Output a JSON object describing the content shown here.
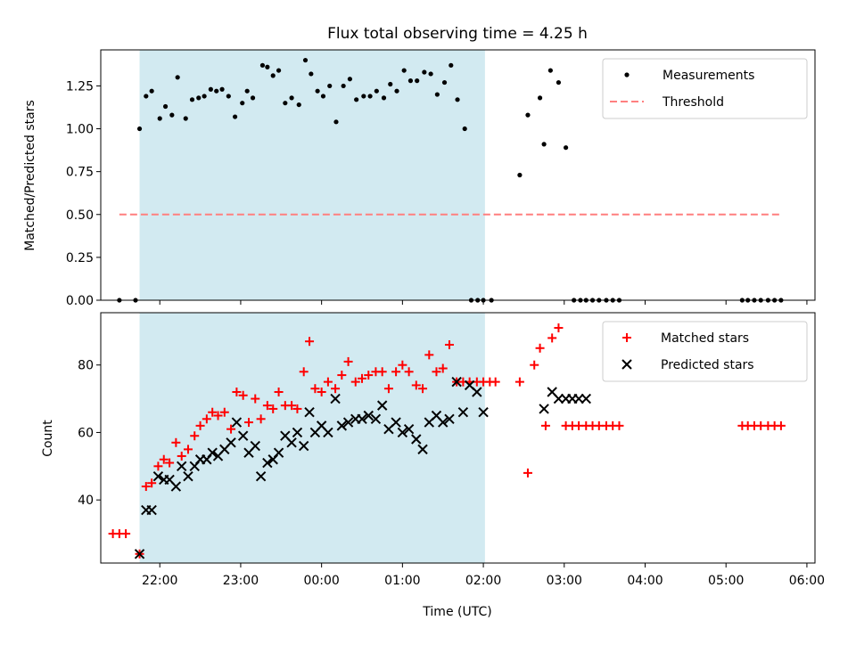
{
  "chart_data": [
    {
      "type": "scatter",
      "title": "Flux total observing time = 4.25 h",
      "xlabel": "",
      "ylabel": "Matched/Predicted stars",
      "xlim": [
        -2.73,
        6.1
      ],
      "ylim": [
        0.0,
        1.46
      ],
      "yticks": [
        {
          "v": 0.0,
          "label": "0.00"
        },
        {
          "v": 0.25,
          "label": "0.25"
        },
        {
          "v": 0.5,
          "label": "0.50"
        },
        {
          "v": 0.75,
          "label": "0.75"
        },
        {
          "v": 1.0,
          "label": "1.00"
        },
        {
          "v": 1.25,
          "label": "1.25"
        }
      ],
      "xticks": [
        -2,
        -1,
        0,
        1,
        2,
        3,
        4,
        5,
        6
      ],
      "shaded_span": [
        -2.25,
        2.02
      ],
      "legend_position": "upper right",
      "legend": [
        {
          "name": "Measurements",
          "marker": "dot"
        },
        {
          "name": "Threshold",
          "marker": "dash"
        }
      ],
      "threshold": {
        "value": 0.5,
        "x_range": [
          -2.5,
          5.7
        ],
        "color": "#ff7f7f"
      },
      "series": [
        {
          "name": "Measurements",
          "color": "#000000",
          "x": [
            -2.5,
            -2.3,
            -2.25,
            -2.17,
            -2.1,
            -2.0,
            -1.93,
            -1.85,
            -1.78,
            -1.68,
            -1.6,
            -1.52,
            -1.45,
            -1.37,
            -1.3,
            -1.23,
            -1.15,
            -1.07,
            -0.98,
            -0.92,
            -0.85,
            -0.73,
            -0.67,
            -0.6,
            -0.53,
            -0.45,
            -0.37,
            -0.28,
            -0.2,
            -0.13,
            -0.05,
            0.02,
            0.1,
            0.18,
            0.27,
            0.35,
            0.43,
            0.52,
            0.6,
            0.68,
            0.77,
            0.85,
            0.93,
            1.02,
            1.1,
            1.18,
            1.27,
            1.35,
            1.43,
            1.52,
            1.6,
            1.68,
            1.77,
            1.85,
            1.93,
            2.0,
            2.1,
            2.45,
            2.55,
            2.7,
            2.75,
            2.83,
            2.93,
            3.02,
            3.12,
            3.2,
            3.27,
            3.35,
            3.43,
            3.52,
            3.6,
            3.68,
            5.2,
            5.27,
            5.35,
            5.43,
            5.52,
            5.6,
            5.68
          ],
          "y": [
            0,
            0,
            1.0,
            1.19,
            1.22,
            1.06,
            1.13,
            1.08,
            1.3,
            1.06,
            1.17,
            1.18,
            1.19,
            1.23,
            1.22,
            1.23,
            1.19,
            1.07,
            1.15,
            1.22,
            1.18,
            1.37,
            1.36,
            1.31,
            1.34,
            1.15,
            1.18,
            1.14,
            1.4,
            1.32,
            1.22,
            1.19,
            1.25,
            1.04,
            1.25,
            1.29,
            1.17,
            1.19,
            1.19,
            1.22,
            1.18,
            1.26,
            1.22,
            1.34,
            1.28,
            1.28,
            1.33,
            1.32,
            1.2,
            1.27,
            1.37,
            1.17,
            1.0,
            0,
            0,
            0,
            0,
            0.73,
            1.08,
            1.18,
            0.91,
            1.34,
            1.27,
            0.89,
            0,
            0,
            0,
            0,
            0,
            0,
            0,
            0,
            0,
            0,
            0,
            0,
            0,
            0,
            0
          ]
        }
      ]
    },
    {
      "type": "scatter",
      "title": "",
      "xlabel": "Time (UTC)",
      "ylabel": "Count",
      "xlim": [
        -2.73,
        6.1
      ],
      "ylim": [
        21.3,
        95.5
      ],
      "yticks": [
        {
          "v": 40,
          "label": "40"
        },
        {
          "v": 60,
          "label": "60"
        },
        {
          "v": 80,
          "label": "80"
        }
      ],
      "xticks": [
        -2,
        -1,
        0,
        1,
        2,
        3,
        4,
        5,
        6
      ],
      "xtick_labels": [
        "22:00",
        "23:00",
        "00:00",
        "01:00",
        "02:00",
        "03:00",
        "04:00",
        "05:00",
        "06:00"
      ],
      "shaded_span": [
        -2.25,
        2.02
      ],
      "legend_position": "upper right",
      "legend": [
        {
          "name": "Matched stars",
          "marker": "plus"
        },
        {
          "name": "Predicted stars",
          "marker": "x"
        }
      ],
      "series": [
        {
          "name": "Matched stars",
          "color": "#ff0000",
          "marker": "plus",
          "x": [
            -2.58,
            -2.5,
            -2.42,
            -2.25,
            -2.17,
            -2.1,
            -2.02,
            -1.95,
            -1.88,
            -1.8,
            -1.73,
            -1.65,
            -1.57,
            -1.5,
            -1.42,
            -1.35,
            -1.28,
            -1.2,
            -1.12,
            -1.05,
            -0.97,
            -0.9,
            -0.82,
            -0.75,
            -0.67,
            -0.6,
            -0.53,
            -0.45,
            -0.37,
            -0.3,
            -0.22,
            -0.15,
            -0.08,
            0.0,
            0.08,
            0.17,
            0.25,
            0.33,
            0.42,
            0.5,
            0.58,
            0.67,
            0.75,
            0.83,
            0.92,
            1.0,
            1.08,
            1.17,
            1.25,
            1.33,
            1.42,
            1.5,
            1.58,
            1.67,
            1.75,
            1.83,
            1.92,
            2.0,
            2.08,
            2.15,
            2.45,
            2.55,
            2.63,
            2.7,
            2.77,
            2.85,
            2.93,
            3.02,
            3.1,
            3.18,
            3.27,
            3.35,
            3.43,
            3.52,
            3.6,
            3.68,
            5.2,
            5.27,
            5.35,
            5.43,
            5.52,
            5.6,
            5.68
          ],
          "y": [
            30,
            30,
            30,
            24,
            44,
            45,
            50,
            52,
            51,
            57,
            53,
            55,
            59,
            62,
            64,
            66,
            65,
            66,
            61,
            72,
            71,
            63,
            70,
            64,
            68,
            67,
            72,
            68,
            68,
            67,
            78,
            87,
            73,
            72,
            75,
            73,
            77,
            81,
            75,
            76,
            77,
            78,
            78,
            73,
            78,
            80,
            78,
            74,
            73,
            83,
            78,
            79,
            86,
            75,
            75,
            75,
            75,
            75,
            75,
            75,
            75,
            48,
            80,
            85,
            62,
            88,
            91,
            62,
            62,
            62,
            62,
            62,
            62,
            62,
            62,
            62,
            62,
            62,
            62,
            62,
            62,
            62,
            62
          ]
        },
        {
          "name": "Predicted stars",
          "color": "#000000",
          "marker": "x",
          "x": [
            -2.25,
            -2.17,
            -2.1,
            -2.02,
            -1.95,
            -1.88,
            -1.8,
            -1.73,
            -1.65,
            -1.57,
            -1.5,
            -1.42,
            -1.35,
            -1.28,
            -1.2,
            -1.12,
            -1.05,
            -0.97,
            -0.9,
            -0.82,
            -0.75,
            -0.67,
            -0.6,
            -0.53,
            -0.45,
            -0.37,
            -0.3,
            -0.22,
            -0.15,
            -0.08,
            0.0,
            0.08,
            0.17,
            0.25,
            0.33,
            0.42,
            0.5,
            0.58,
            0.67,
            0.75,
            0.83,
            0.92,
            1.0,
            1.08,
            1.17,
            1.25,
            1.33,
            1.42,
            1.5,
            1.58,
            1.67,
            1.75,
            1.83,
            1.92,
            2.0,
            2.75,
            2.85,
            2.93,
            3.02,
            3.1,
            3.18,
            3.27
          ],
          "y": [
            24,
            37,
            37,
            47,
            46,
            46,
            44,
            50,
            47,
            50,
            52,
            52,
            54,
            53,
            55,
            57,
            63,
            59,
            54,
            56,
            47,
            51,
            52,
            54,
            59,
            57,
            60,
            56,
            66,
            60,
            62,
            60,
            70,
            62,
            63,
            64,
            64,
            65,
            64,
            68,
            61,
            63,
            60,
            61,
            58,
            55,
            63,
            65,
            63,
            64,
            75,
            66,
            74,
            72,
            66,
            67,
            72,
            70,
            70,
            70,
            70,
            70
          ]
        }
      ]
    }
  ]
}
